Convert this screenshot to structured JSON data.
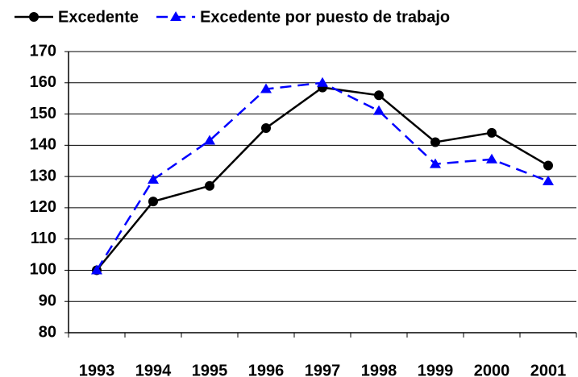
{
  "chart_data": {
    "type": "line",
    "categories": [
      "1993",
      "1994",
      "1995",
      "1996",
      "1997",
      "1998",
      "1999",
      "2000",
      "2001"
    ],
    "series": [
      {
        "name": "Excedente",
        "color": "#000000",
        "marker": "circle",
        "dashed": false,
        "values": [
          100,
          122,
          127,
          145.5,
          158.5,
          156,
          141,
          144,
          133.5
        ]
      },
      {
        "name": "Excedente por puesto de trabajo",
        "color": "#0000ff",
        "marker": "triangle",
        "dashed": true,
        "values": [
          100,
          129,
          141.5,
          158,
          160,
          151,
          134,
          135.5,
          128.5
        ]
      }
    ],
    "ylim": [
      80,
      170
    ],
    "yticks": [
      80,
      90,
      100,
      110,
      120,
      130,
      140,
      150,
      160,
      170
    ],
    "grid": true,
    "legend": "top"
  }
}
